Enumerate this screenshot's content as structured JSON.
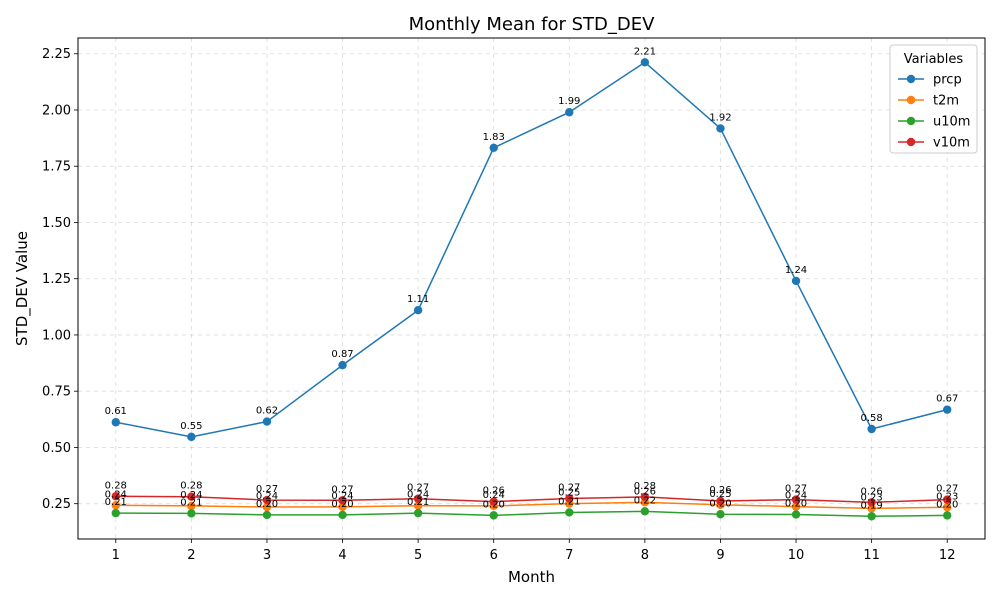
{
  "chart_data": {
    "type": "line",
    "title": "Monthly Mean for STD_DEV",
    "xlabel": "Month",
    "ylabel": "STD_DEV Value",
    "x": [
      1,
      2,
      3,
      4,
      5,
      6,
      7,
      8,
      9,
      10,
      11,
      12
    ],
    "xlim": [
      0.5,
      12.5
    ],
    "ylim": [
      0.093,
      2.32
    ],
    "yticks": [
      0.25,
      0.5,
      0.75,
      1.0,
      1.25,
      1.5,
      1.75,
      2.0,
      2.25
    ],
    "ytick_labels": [
      "0.25",
      "0.50",
      "0.75",
      "1.00",
      "1.25",
      "1.50",
      "1.75",
      "2.00",
      "2.25"
    ],
    "xtick_labels": [
      "1",
      "2",
      "3",
      "4",
      "5",
      "6",
      "7",
      "8",
      "9",
      "10",
      "11",
      "12"
    ],
    "grid": true,
    "legend": {
      "title": "Variables",
      "position": "top-right"
    },
    "series": [
      {
        "name": "prcp",
        "color": "#1f77b4",
        "values": [
          0.612,
          0.547,
          0.615,
          0.866,
          1.11,
          1.832,
          1.99,
          2.212,
          1.918,
          1.24,
          0.582,
          0.668
        ],
        "labels": [
          "0.61",
          "0.55",
          "0.62",
          "0.87",
          "1.11",
          "1.83",
          "1.99",
          "2.21",
          "1.92",
          "1.24",
          "0.58",
          "0.67"
        ]
      },
      {
        "name": "t2m",
        "color": "#ff7f0e",
        "values": [
          0.243,
          0.24,
          0.235,
          0.236,
          0.241,
          0.24,
          0.25,
          0.256,
          0.245,
          0.237,
          0.229,
          0.234
        ],
        "labels": [
          "0.24",
          "0.24",
          "0.24",
          "0.24",
          "0.24",
          "0.24",
          "0.25",
          "0.26",
          "0.25",
          "0.24",
          "0.23",
          "0.23"
        ]
      },
      {
        "name": "u10m",
        "color": "#2ca02c",
        "values": [
          0.208,
          0.207,
          0.2,
          0.2,
          0.208,
          0.198,
          0.211,
          0.216,
          0.203,
          0.202,
          0.194,
          0.198
        ],
        "labels": [
          "0.21",
          "0.21",
          "0.20",
          "0.20",
          "0.21",
          "0.20",
          "0.21",
          "0.22",
          "0.20",
          "0.20",
          "0.19",
          "0.20"
        ]
      },
      {
        "name": "v10m",
        "color": "#d62728",
        "values": [
          0.283,
          0.281,
          0.266,
          0.265,
          0.272,
          0.259,
          0.273,
          0.28,
          0.262,
          0.268,
          0.256,
          0.268
        ],
        "labels": [
          "0.28",
          "0.28",
          "0.27",
          "0.27",
          "0.27",
          "0.26",
          "0.27",
          "0.28",
          "0.26",
          "0.27",
          "0.26",
          "0.27"
        ]
      }
    ]
  }
}
